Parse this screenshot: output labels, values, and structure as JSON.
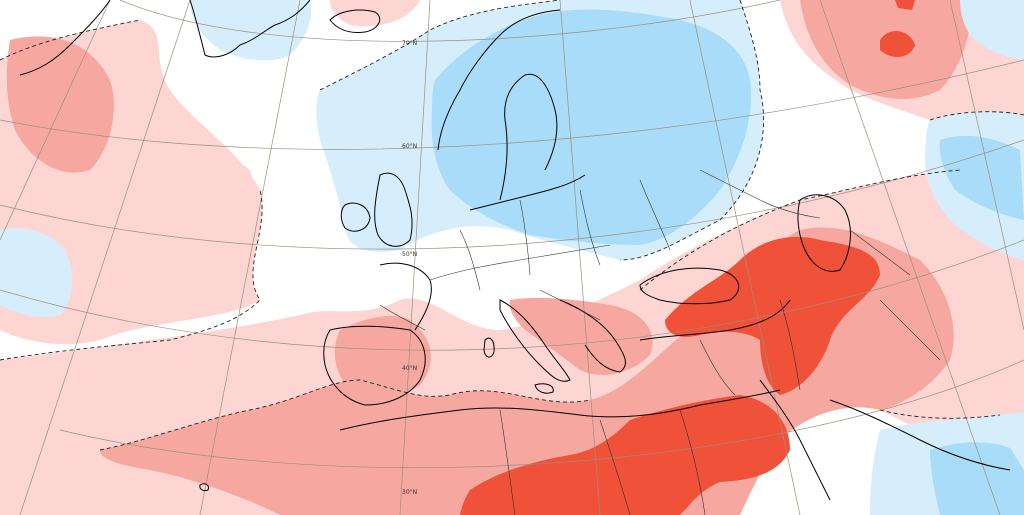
{
  "map": {
    "colors": {
      "background": "#ffffff",
      "cold_light": "#d6eefc",
      "cold_medium": "#a8dcf8",
      "cold_strong": "#72c2ee",
      "warm_light": "#fdd6d3",
      "warm_medium": "#f6a8a0",
      "warm_strong": "#ef5139",
      "coast": "#000000",
      "border": "#333333",
      "graticule": "#9c8f7c"
    },
    "parallels": [
      {
        "lat": 70,
        "label": "70°N"
      },
      {
        "lat": 60,
        "label": "60°N"
      },
      {
        "lat": 50,
        "label": "50°N"
      },
      {
        "lat": 40,
        "label": "40°N"
      },
      {
        "lat": 30,
        "label": "30°N"
      }
    ]
  }
}
